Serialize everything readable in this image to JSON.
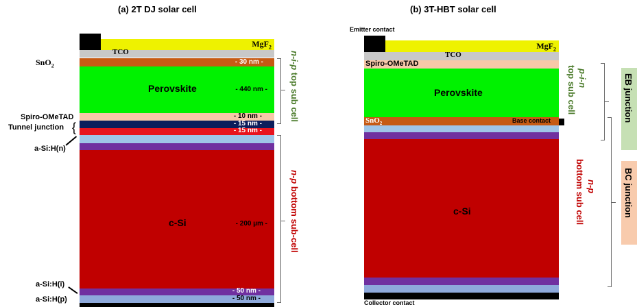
{
  "titles": {
    "left": "(a)  2T DJ solar cell",
    "right": "(b)  3T-HBT solar cell"
  },
  "left_cell": {
    "mgf2": "MgF",
    "mgf2_sub": "2",
    "tco": "TCO",
    "sno2": "SnO",
    "sno2_sub": "2",
    "perovskite": "Perovskite",
    "csi": "c-Si",
    "spiro": "Spiro-OMeTAD",
    "tunnel": "Tunnel junction",
    "asih_n": "a-Si:H(n)",
    "asih_i": "a-Si:H(i)",
    "asih_p": "a-Si:H(p)",
    "thicknesses": {
      "sno2": "- 30  nm -",
      "perovskite": "- 440 nm -",
      "spiro": "- 10 nm -",
      "tunnel1": "- 15 nm -",
      "tunnel2": "- 15 nm -",
      "csi": "- 200 µm -",
      "asih_i": "- 50 nm -",
      "asih_p": "- 50 nm -"
    },
    "top_label_italic": "n-i-p",
    "top_label_rest": " top sub cell",
    "bottom_label_italic": "n-p",
    "bottom_label_rest": " bottom sub-cell"
  },
  "right_cell": {
    "emitter": "Emitter contact",
    "mgf2": "MgF",
    "mgf2_sub": "2",
    "tco": "TCO",
    "spiro": "Spiro-OMeTAD",
    "perovskite": "Perovskite",
    "sno2": "SnO",
    "sno2_sub": "2",
    "base": "Base contact",
    "csi": "c-Si",
    "collector": "Collector contact",
    "top_label_italic": "p-i-n",
    "top_label_rest": "top sub cell",
    "bottom_label_italic": "n-p",
    "bottom_label_rest": "bottom sub cell"
  },
  "junctions": {
    "eb": "EB junction",
    "bc": "BC junction"
  },
  "colors": {
    "mgf2": "#eef200",
    "tco": "#c8c8c8",
    "sno2": "#c65a14",
    "perovskite": "#00f200",
    "spiro": "#f8c8a8",
    "tunnel_dark": "#0d1e5c",
    "tunnel_red": "#e8141e",
    "light_blue": "#9fc5e8",
    "purple": "#7030a0",
    "csi": "#c00000",
    "blue_gray": "#8ea9db",
    "black": "#000000",
    "label_green": "#4b7b2b",
    "label_red": "#c00000",
    "eb_box": "#c6e0b4",
    "bc_box": "#f8cbad"
  }
}
